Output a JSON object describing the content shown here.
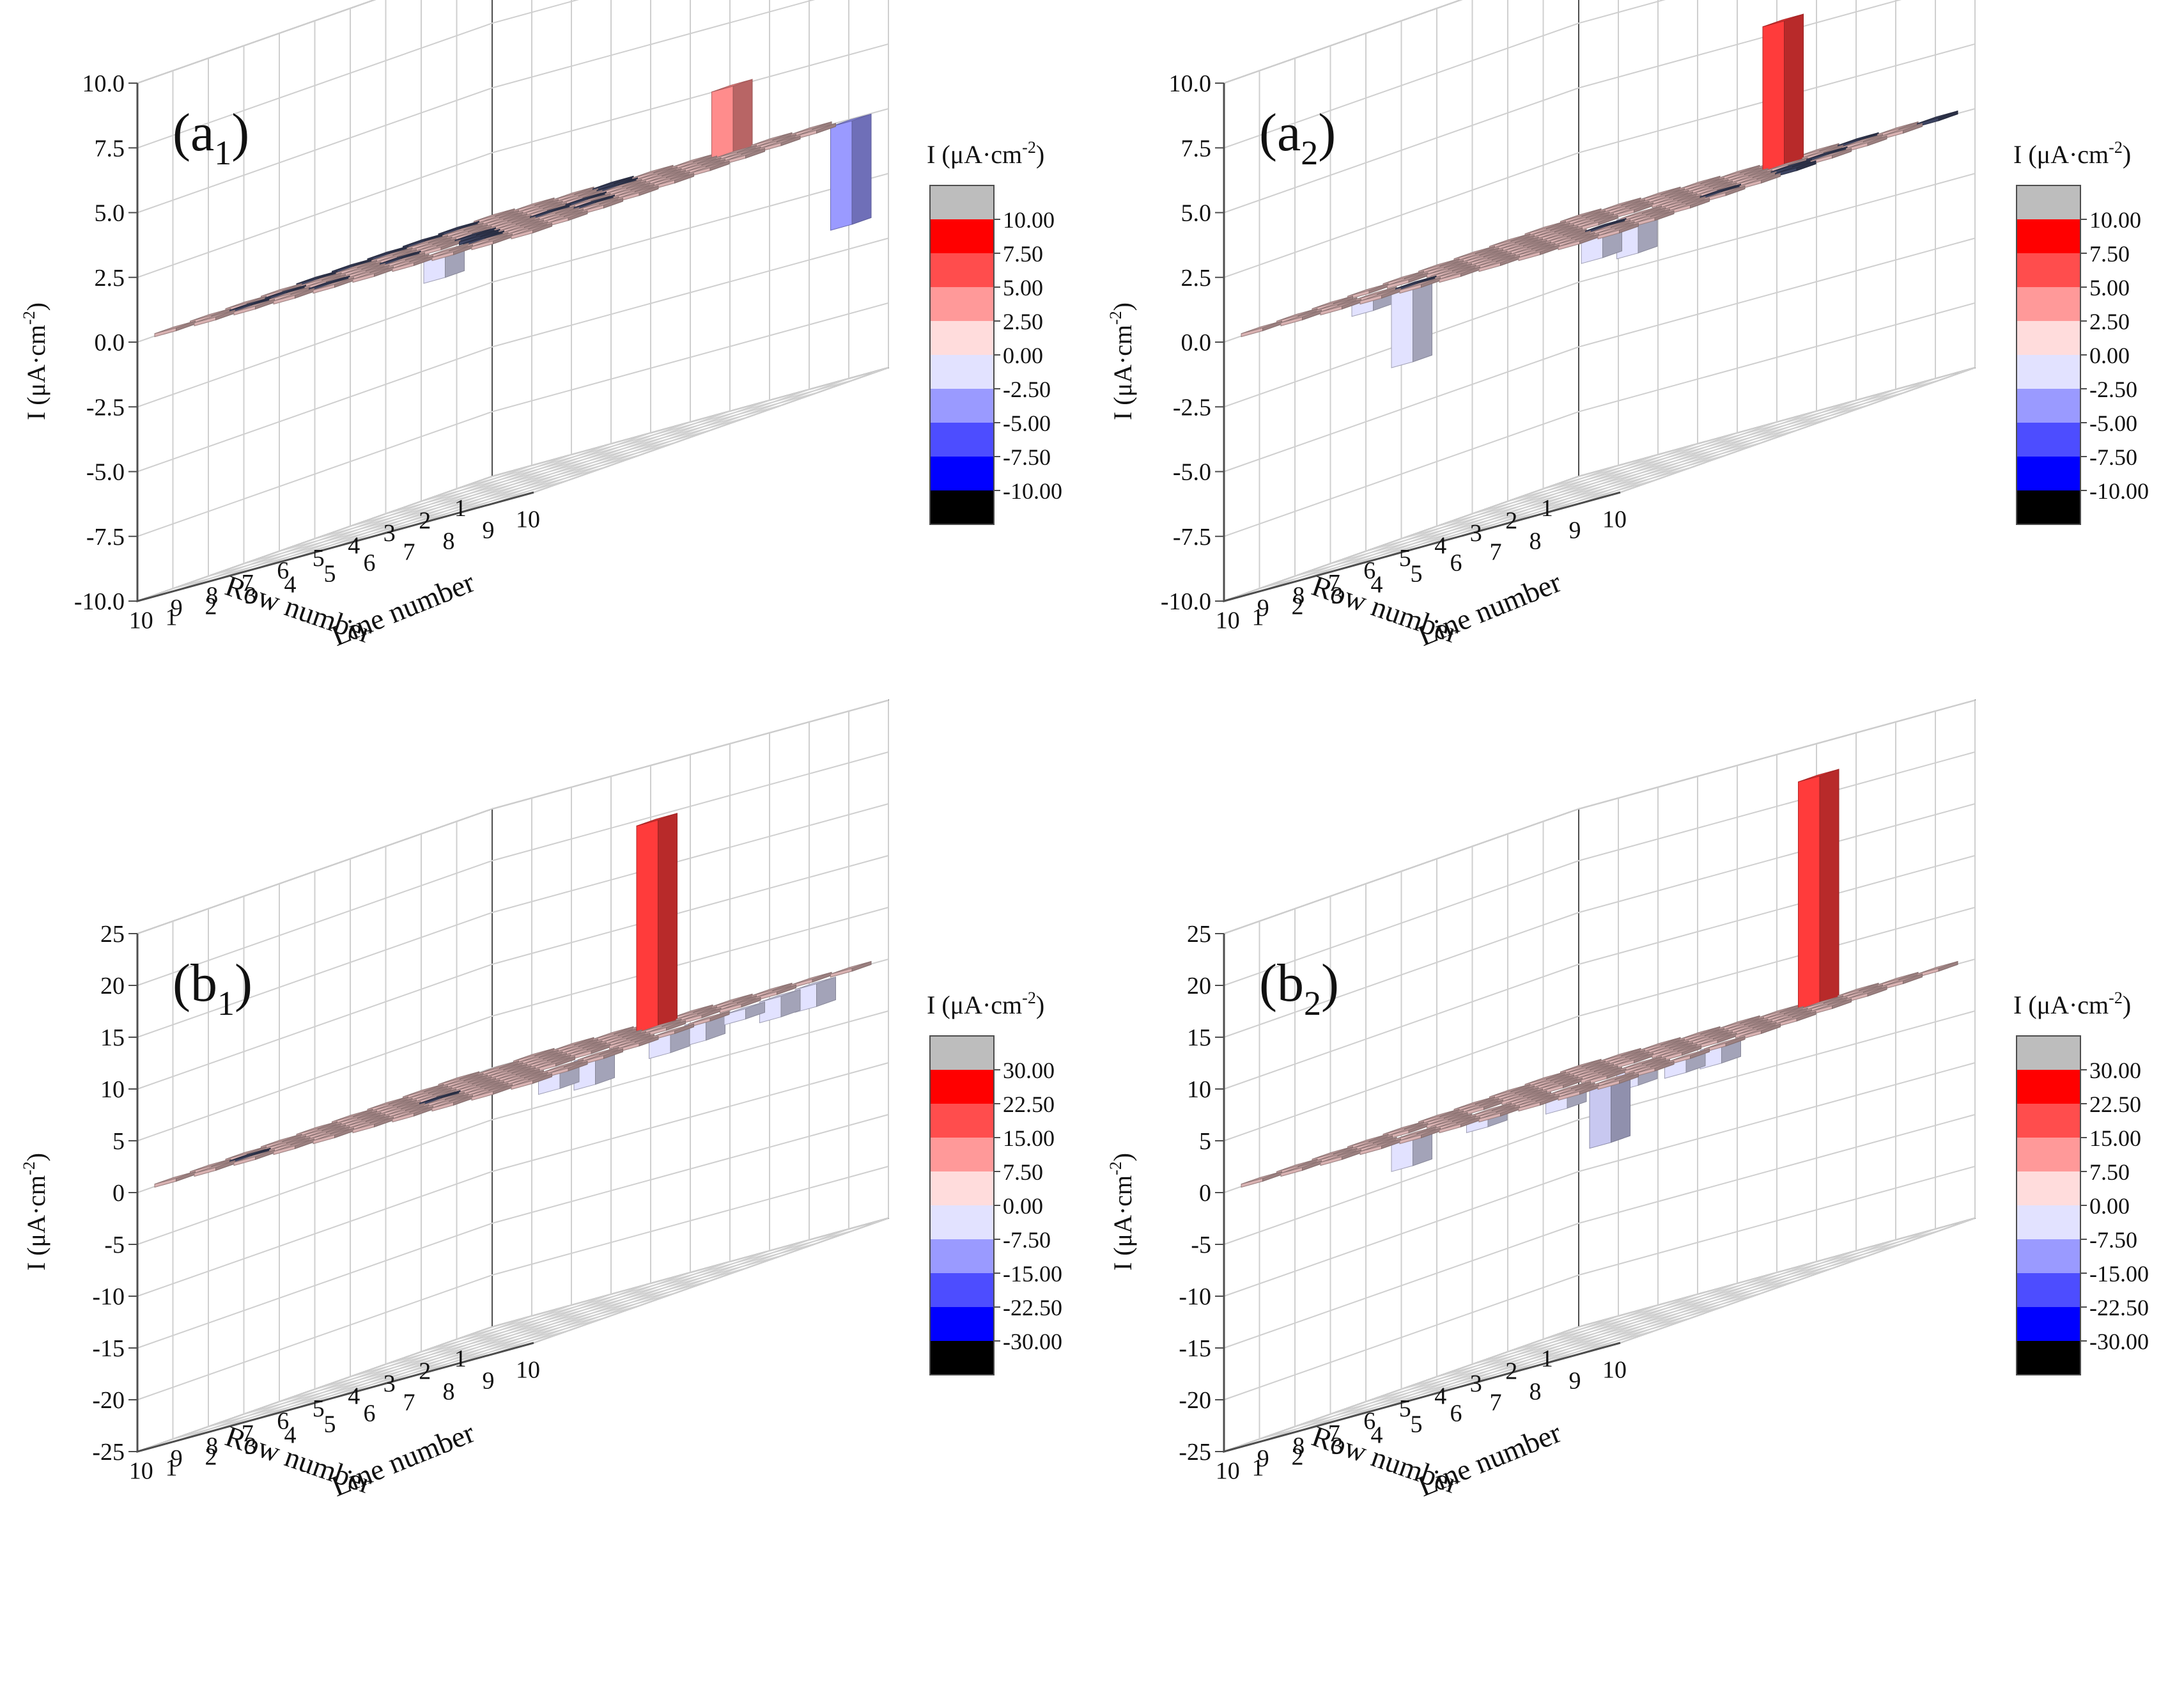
{
  "figure": {
    "colors": {
      "grid": "#cfcfcf",
      "axis": "#4d4d4d",
      "text": "#111111",
      "wall": "#ffffff",
      "legend_gray": "#bdbdbd",
      "legend_black": "#000000",
      "legend_bands": [
        "#ff0000",
        "#ff4d4d",
        "#ff9999",
        "#ffdcdc",
        "#e2e2ff",
        "#9a9aff",
        "#4d4dff",
        "#0000ff"
      ],
      "neutral_tile": "#d9b2b2",
      "small_negative": "#3d4462"
    }
  },
  "chart_data": [
    {
      "type": "bar3d",
      "panel_label": "a",
      "panel_sub": "1",
      "ylabel_main": "I (μA·cm",
      "ylabel_sup": "-2",
      "ylabel_tail": ")",
      "xlabel": "Row number",
      "zlabel": "Line number",
      "ylim": [
        -10,
        10
      ],
      "yticks": [
        "10.0",
        "7.5",
        "5.0",
        "2.5",
        "0.0",
        "-2.5",
        "-5.0",
        "-7.5",
        "-10.0"
      ],
      "row_ticks": [
        "1",
        "2",
        "3",
        "4",
        "5",
        "6",
        "7",
        "8",
        "9",
        "10"
      ],
      "line_ticks": [
        "1",
        "2",
        "3",
        "4",
        "5",
        "6",
        "7",
        "8",
        "9",
        "10"
      ],
      "legend_title_main": "I (μA·cm",
      "legend_title_sup": "-2",
      "legend_title_tail": ")",
      "legend_levels": [
        "10.00",
        "7.50",
        "5.00",
        "2.50",
        "0.00",
        "-2.50",
        "-5.00",
        "-7.50",
        "-10.00"
      ],
      "bars": [
        {
          "row": 1,
          "line": 7,
          "value": 2.6,
          "color": "#ff8c8c"
        },
        {
          "row": 1,
          "line": 10,
          "value": -4.0,
          "color": "#9a9aff"
        },
        {
          "row": 8,
          "line": 6,
          "value": -1.0,
          "color": "#e2e2ff"
        }
      ],
      "dark_cells": [
        [
          2,
          1
        ],
        [
          3,
          1
        ],
        [
          4,
          1
        ],
        [
          5,
          1
        ],
        [
          6,
          1
        ],
        [
          1,
          4
        ],
        [
          2,
          5
        ],
        [
          4,
          6
        ],
        [
          5,
          6
        ],
        [
          6,
          5
        ],
        [
          7,
          4
        ],
        [
          8,
          2
        ],
        [
          9,
          2
        ],
        [
          7,
          6
        ],
        [
          8,
          7
        ],
        [
          1,
          10
        ],
        [
          6,
          8
        ],
        [
          9,
          4
        ]
      ]
    },
    {
      "type": "bar3d",
      "panel_label": "a",
      "panel_sub": "2",
      "ylabel_main": "I (μA·cm",
      "ylabel_sup": "-2",
      "ylabel_tail": ")",
      "xlabel": "Row number",
      "zlabel": "Line number",
      "ylim": [
        -10,
        10
      ],
      "yticks": [
        "10.0",
        "7.5",
        "5.0",
        "2.5",
        "0.0",
        "-2.5",
        "-5.0",
        "-7.5",
        "-10.0"
      ],
      "row_ticks": [
        "1",
        "2",
        "3",
        "4",
        "5",
        "6",
        "7",
        "8",
        "9",
        "10"
      ],
      "line_ticks": [
        "1",
        "2",
        "3",
        "4",
        "5",
        "6",
        "7",
        "8",
        "9",
        "10"
      ],
      "legend_title_main": "I (μA·cm",
      "legend_title_sup": "-2",
      "legend_title_tail": ")",
      "legend_levels": [
        "10.00",
        "7.50",
        "5.00",
        "2.50",
        "0.00",
        "-2.50",
        "-5.00",
        "-7.50",
        "-10.00"
      ],
      "bars": [
        {
          "row": 2,
          "line": 7,
          "value": 5.6,
          "color": "#ff3b3b"
        },
        {
          "row": 5,
          "line": 6,
          "value": -1.5,
          "color": "#e2e2ff"
        },
        {
          "row": 6,
          "line": 6,
          "value": -1.2,
          "color": "#e2e2ff"
        },
        {
          "row": 8,
          "line": 3,
          "value": -3.0,
          "color": "#e2e2ff"
        },
        {
          "row": 8,
          "line": 2,
          "value": -0.6,
          "color": "#e2e2ff"
        }
      ],
      "dark_cells": [
        [
          1,
          8
        ],
        [
          1,
          10
        ],
        [
          3,
          9
        ],
        [
          4,
          9
        ],
        [
          5,
          10
        ],
        [
          6,
          9
        ],
        [
          7,
          7
        ],
        [
          9,
          4
        ]
      ]
    },
    {
      "type": "bar3d",
      "panel_label": "b",
      "panel_sub": "1",
      "ylabel_main": "I (μA·cm",
      "ylabel_sup": "-2",
      "ylabel_tail": ")",
      "xlabel": "Row number",
      "zlabel": "Line number",
      "ylim": [
        -25,
        25
      ],
      "yticks": [
        "25",
        "20",
        "15",
        "10",
        "5",
        "0",
        "-5",
        "-10",
        "-15",
        "-20",
        "-25"
      ],
      "row_ticks": [
        "1",
        "2",
        "3",
        "4",
        "5",
        "6",
        "7",
        "8",
        "9",
        "10"
      ],
      "line_ticks": [
        "1",
        "2",
        "3",
        "4",
        "5",
        "6",
        "7",
        "8",
        "9",
        "10"
      ],
      "legend_title_main": "I (μA·cm",
      "legend_title_sup": "-2",
      "legend_title_tail": ")",
      "legend_levels": [
        "30.00",
        "22.50",
        "15.00",
        "7.50",
        "0.00",
        "-7.50",
        "-15.00",
        "-22.50",
        "-30.00"
      ],
      "bars": [
        {
          "row": 2,
          "line": 6,
          "value": 20.0,
          "color": "#ff3b3b"
        },
        {
          "row": 1,
          "line": 1,
          "value": -1.0,
          "color": "#c8c8f0"
        },
        {
          "row": 4,
          "line": 9,
          "value": -2.0,
          "color": "#e2e2ff"
        },
        {
          "row": 5,
          "line": 9,
          "value": -2.0,
          "color": "#e2e2ff"
        },
        {
          "row": 6,
          "line": 8,
          "value": -2.8,
          "color": "#e2e2ff"
        },
        {
          "row": 7,
          "line": 8,
          "value": -2.0,
          "color": "#e2e2ff"
        },
        {
          "row": 3,
          "line": 10,
          "value": -2.0,
          "color": "#e2e2ff"
        },
        {
          "row": 4,
          "line": 10,
          "value": -1.0,
          "color": "#e2e2ff"
        },
        {
          "row": 2,
          "line": 10,
          "value": -2.2,
          "color": "#e2e2ff"
        }
      ],
      "dark_cells": [
        [
          1,
          1
        ],
        [
          9,
          2
        ],
        [
          7,
          5
        ]
      ]
    },
    {
      "type": "bar3d",
      "panel_label": "b",
      "panel_sub": "2",
      "ylabel_main": "I (μA·cm",
      "ylabel_sup": "-2",
      "ylabel_tail": ")",
      "xlabel": "Row number",
      "zlabel": "Line number",
      "ylim": [
        -25,
        25
      ],
      "yticks": [
        "25",
        "20",
        "15",
        "10",
        "5",
        "0",
        "-5",
        "-10",
        "-15",
        "-20",
        "-25"
      ],
      "row_ticks": [
        "1",
        "2",
        "3",
        "4",
        "5",
        "6",
        "7",
        "8",
        "9",
        "10"
      ],
      "line_ticks": [
        "1",
        "2",
        "3",
        "4",
        "5",
        "6",
        "7",
        "8",
        "9",
        "10"
      ],
      "legend_title_main": "I (μA·cm",
      "legend_title_sup": "-2",
      "legend_title_tail": ")",
      "legend_levels": [
        "30.00",
        "22.50",
        "15.00",
        "7.50",
        "0.00",
        "-7.50",
        "-15.00",
        "-22.50",
        "-30.00"
      ],
      "bars": [
        {
          "row": 1,
          "line": 7,
          "value": 22.0,
          "color": "#ff3b3b"
        },
        {
          "row": 5,
          "line": 6,
          "value": -2.0,
          "color": "#e2e2ff"
        },
        {
          "row": 7,
          "line": 4,
          "value": -1.5,
          "color": "#e2e2ff"
        },
        {
          "row": 8,
          "line": 3,
          "value": -3.0,
          "color": "#e2e2ff"
        },
        {
          "row": 7,
          "line": 6,
          "value": -1.8,
          "color": "#e2e2ff"
        },
        {
          "row": 8,
          "line": 8,
          "value": -6.0,
          "color": "#c8c8f0"
        },
        {
          "row": 7,
          "line": 9,
          "value": -1.5,
          "color": "#e2e2ff"
        },
        {
          "row": 6,
          "line": 9,
          "value": -1.8,
          "color": "#e2e2ff"
        }
      ],
      "dark_cells": []
    }
  ]
}
